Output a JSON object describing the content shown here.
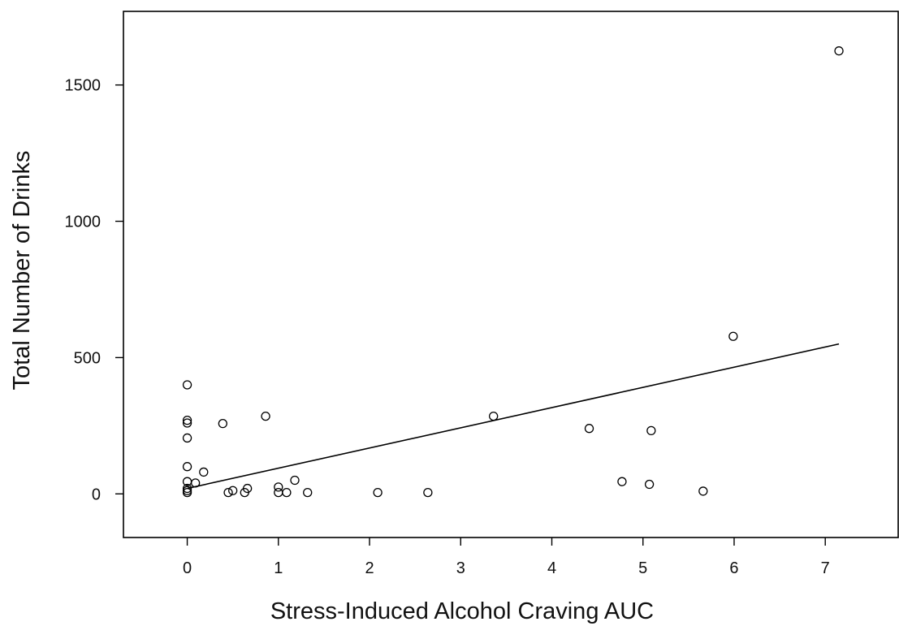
{
  "chart_data": {
    "type": "scatter",
    "title": "",
    "xlabel": "Stress-Induced Alcohol Craving AUC",
    "ylabel": "Total Number of Drinks",
    "xlim": [
      -0.7,
      7.8
    ],
    "ylim": [
      -160,
      1770
    ],
    "x_ticks": [
      0,
      1,
      2,
      3,
      4,
      5,
      6,
      7
    ],
    "y_ticks": [
      0,
      500,
      1000,
      1500
    ],
    "grid": false,
    "legend": "none",
    "marker": "open-circle",
    "points": [
      {
        "x": 0,
        "y": 400
      },
      {
        "x": 0,
        "y": 270
      },
      {
        "x": 0,
        "y": 260
      },
      {
        "x": 0,
        "y": 205
      },
      {
        "x": 0,
        "y": 100
      },
      {
        "x": 0,
        "y": 45
      },
      {
        "x": 0,
        "y": 20
      },
      {
        "x": 0,
        "y": 12
      },
      {
        "x": 0,
        "y": 5
      },
      {
        "x": 0.09,
        "y": 40
      },
      {
        "x": 0.18,
        "y": 80
      },
      {
        "x": 0.39,
        "y": 258
      },
      {
        "x": 0.45,
        "y": 5
      },
      {
        "x": 0.5,
        "y": 12
      },
      {
        "x": 0.63,
        "y": 5
      },
      {
        "x": 0.66,
        "y": 20
      },
      {
        "x": 0.86,
        "y": 285
      },
      {
        "x": 1.0,
        "y": 25
      },
      {
        "x": 1.0,
        "y": 5
      },
      {
        "x": 1.09,
        "y": 5
      },
      {
        "x": 1.18,
        "y": 50
      },
      {
        "x": 1.32,
        "y": 5
      },
      {
        "x": 2.09,
        "y": 5
      },
      {
        "x": 2.64,
        "y": 5
      },
      {
        "x": 3.36,
        "y": 285
      },
      {
        "x": 4.41,
        "y": 240
      },
      {
        "x": 4.77,
        "y": 45
      },
      {
        "x": 5.07,
        "y": 35
      },
      {
        "x": 5.09,
        "y": 232
      },
      {
        "x": 5.66,
        "y": 10
      },
      {
        "x": 5.99,
        "y": 578
      },
      {
        "x": 7.15,
        "y": 1625
      }
    ],
    "fit_line": {
      "x": [
        0,
        7.15
      ],
      "y": [
        20,
        550
      ]
    }
  }
}
